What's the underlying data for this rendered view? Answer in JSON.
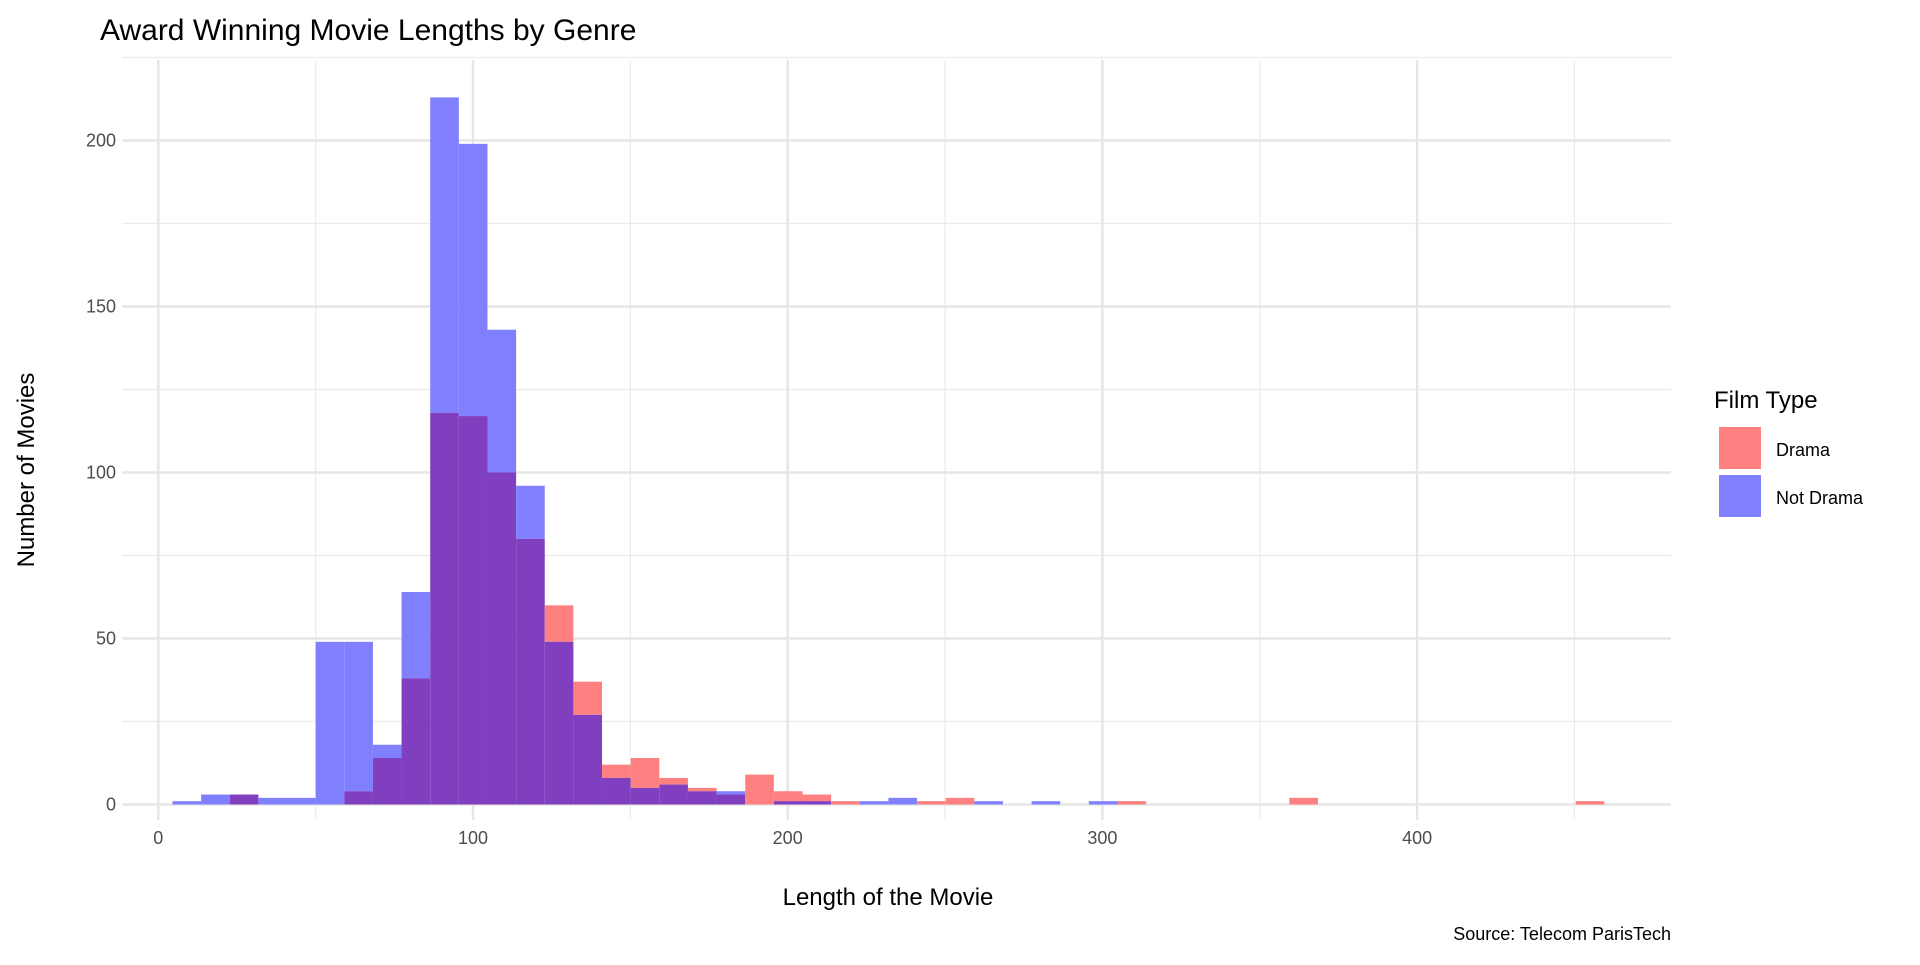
{
  "chart_data": {
    "type": "bar",
    "subtype": "overlapping-histogram",
    "title": "Award Winning Movie Lengths by Genre",
    "xlabel": "Length of the Movie",
    "ylabel": "Number of Movies",
    "caption": "Source: Telecom ParisTech",
    "xlim": [
      -10,
      472
    ],
    "ylim": [
      0,
      224
    ],
    "x_ticks": [
      0,
      100,
      200,
      300,
      400
    ],
    "y_ticks": [
      0,
      50,
      100,
      150,
      200
    ],
    "x_tick_labels": [
      "0",
      "100",
      "200",
      "300",
      "400"
    ],
    "y_tick_labels": [
      "0",
      "50",
      "100",
      "150",
      "200"
    ],
    "grid": true,
    "legend": {
      "title": "Film Type",
      "position": "right"
    },
    "bin_width": 9.1,
    "first_bin_start": 4.5,
    "series": [
      {
        "name": "Drama",
        "color": "#ff8080",
        "values": [
          0,
          0,
          3,
          0,
          0,
          0,
          4,
          14,
          38,
          118,
          117,
          100,
          80,
          60,
          37,
          12,
          14,
          8,
          5,
          3,
          9,
          4,
          3,
          1,
          0,
          0,
          1,
          2,
          0,
          0,
          0,
          0,
          0,
          1,
          0,
          0,
          0,
          0,
          0,
          2,
          0,
          0,
          0,
          0,
          0,
          0,
          0,
          0,
          0,
          1
        ]
      },
      {
        "name": "Not Drama",
        "color": "#8080ff",
        "values": [
          1,
          3,
          3,
          2,
          2,
          49,
          49,
          18,
          64,
          213,
          199,
          143,
          96,
          49,
          27,
          8,
          5,
          6,
          4,
          4,
          0,
          1,
          1,
          0,
          1,
          2,
          0,
          0,
          1,
          0,
          1,
          0,
          1,
          0,
          0,
          0,
          0,
          0,
          0,
          0,
          0,
          0,
          0,
          0,
          0,
          0,
          0,
          0,
          0,
          0
        ]
      }
    ],
    "overlap_color": "#7f3fbf"
  }
}
